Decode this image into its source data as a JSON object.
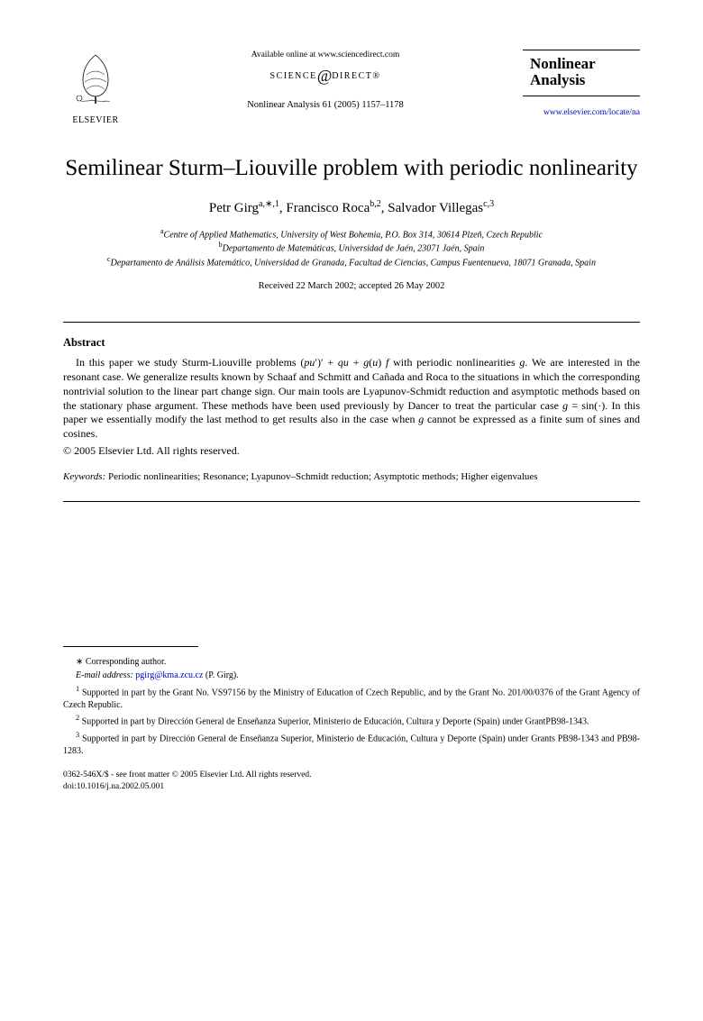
{
  "header": {
    "publisher_name": "ELSEVIER",
    "available_text": "Available online at www.sciencedirect.com",
    "sd_prefix": "SCIENCE",
    "sd_suffix": "DIRECT®",
    "citation": "Nonlinear Analysis 61 (2005) 1157–1178",
    "journal_line1": "Nonlinear",
    "journal_line2": "Analysis",
    "journal_url": "www.elsevier.com/locate/na"
  },
  "title": "Semilinear Sturm–Liouville problem with periodic nonlinearity",
  "authors_html": "Petr Girg<sup>a,∗,1</sup>, Francisco Roca<sup>b,2</sup>, Salvador Villegas<sup>c,3</sup>",
  "affiliations": {
    "a": "Centre of Applied Mathematics, University of West Bohemia, P.O. Box 314, 30614 Plzeň, Czech Republic",
    "b": "Departamento de Matemáticas, Universidad de Jaén, 23071 Jaén, Spain",
    "c": "Departamento de Análisis Matemático, Universidad de Granada, Facultad de Ciencias, Campus Fuentenueva, 18071 Granada, Spain"
  },
  "dates": "Received 22 March 2002; accepted 26 May 2002",
  "abstract": {
    "heading": "Abstract",
    "body": "In this paper we study Sturm-Liouville problems (pu′)′ + qu + g(u) f with periodic nonlinearities g. We are interested in the resonant case. We generalize results known by Schaaf and Schmitt and Cañada and Roca to the situations in which the corresponding nontrivial solution to the linear part change sign. Our main tools are Lyapunov-Schmidt reduction and asymptotic methods based on the stationary phase argument. These methods have been used previously by Dancer to treat the particular case g = sin(·). In this paper we essentially modify the last method to get results also in the case when g cannot be expressed as a finite sum of sines and cosines.",
    "copyright": "© 2005 Elsevier Ltd. All rights reserved."
  },
  "keywords": {
    "label": "Keywords:",
    "text": "Periodic nonlinearities; Resonance; Lyapunov–Schmidt reduction; Asymptotic methods; Higher eigenvalues"
  },
  "footnotes": {
    "corr": "∗ Corresponding author.",
    "email_label": "E-mail address:",
    "email": "pgirg@kma.zcu.cz",
    "email_who": "(P. Girg).",
    "n1": "Supported in part by the Grant No. VS97156 by the Ministry of Education of Czech Republic, and by the Grant No. 201/00/0376 of the Grant Agency of Czech Republic.",
    "n2": "Supported in part by Dirección General de Enseñanza Superior, Ministerio de Educación, Cultura y Deporte (Spain) under GrantPB98-1343.",
    "n3": "Supported in part by Dirección General de Enseñanza Superior, Ministerio de Educación, Cultura y Deporte (Spain) under Grants PB98-1343 and PB98-1283."
  },
  "bottom": {
    "line1": "0362-546X/$ - see front matter © 2005 Elsevier Ltd. All rights reserved.",
    "line2": "doi:10.1016/j.na.2002.05.001"
  },
  "colors": {
    "link": "#0000cc",
    "text": "#000000",
    "bg": "#ffffff"
  }
}
